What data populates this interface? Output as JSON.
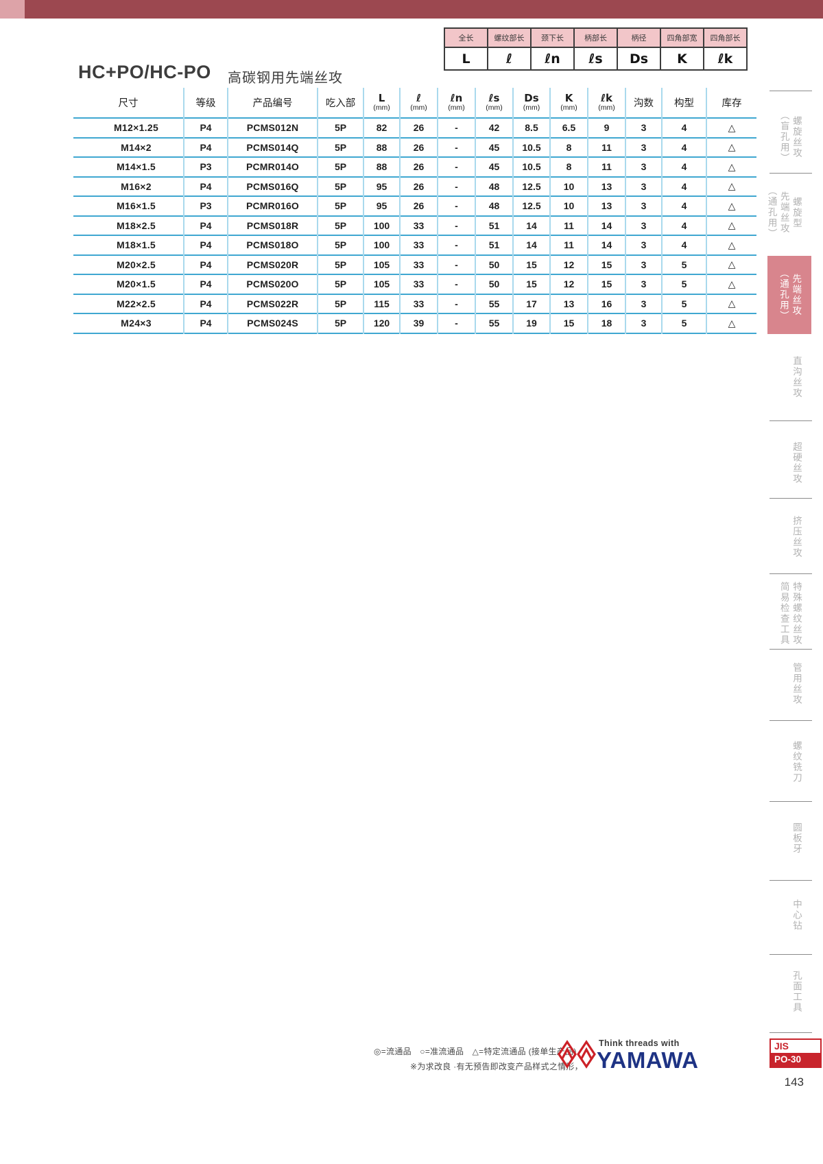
{
  "page": {
    "title_code": "HC+PO/HC-PO",
    "title_cn": "高碳钢用先端丝攻",
    "page_number": "143"
  },
  "colors": {
    "topbar": "#9c4850",
    "topbar_accent": "#dda3a8",
    "legend_header_bg": "#f2c6c9",
    "table_line_horizontal": "#3fa7d1",
    "table_line_vertical": "#a9d9ed",
    "active_tab_bg": "#d8858d",
    "brand_red": "#c8242c",
    "brand_blue": "#1e3384"
  },
  "legend": {
    "columns": [
      {
        "label": "全长",
        "symbol": "L"
      },
      {
        "label": "螺纹部长",
        "symbol": "ℓ"
      },
      {
        "label": "颈下长",
        "symbol": "ℓn"
      },
      {
        "label": "柄部长",
        "symbol": "ℓs"
      },
      {
        "label": "柄径",
        "symbol": "Ds"
      },
      {
        "label": "四角部宽",
        "symbol": "K"
      },
      {
        "label": "四角部长",
        "symbol": "ℓk"
      }
    ]
  },
  "table": {
    "columns": [
      {
        "label": "尺寸",
        "unit": ""
      },
      {
        "label": "等级",
        "unit": ""
      },
      {
        "label": "产品编号",
        "unit": ""
      },
      {
        "label": "吃入部",
        "unit": ""
      },
      {
        "label": "L",
        "unit": "(mm)"
      },
      {
        "label": "ℓ",
        "unit": "(mm)"
      },
      {
        "label": "ℓn",
        "unit": "(mm)"
      },
      {
        "label": "ℓs",
        "unit": "(mm)"
      },
      {
        "label": "Ds",
        "unit": "(mm)"
      },
      {
        "label": "K",
        "unit": "(mm)"
      },
      {
        "label": "ℓk",
        "unit": "(mm)"
      },
      {
        "label": "沟数",
        "unit": ""
      },
      {
        "label": "构型",
        "unit": ""
      },
      {
        "label": "库存",
        "unit": ""
      }
    ],
    "rows": [
      [
        "M12×1.25",
        "P4",
        "PCMS012N",
        "5P",
        "82",
        "26",
        "-",
        "42",
        "8.5",
        "6.5",
        "9",
        "3",
        "4",
        "△"
      ],
      [
        "M14×2",
        "P4",
        "PCMS014Q",
        "5P",
        "88",
        "26",
        "-",
        "45",
        "10.5",
        "8",
        "11",
        "3",
        "4",
        "△"
      ],
      [
        "M14×1.5",
        "P3",
        "PCMR014O",
        "5P",
        "88",
        "26",
        "-",
        "45",
        "10.5",
        "8",
        "11",
        "3",
        "4",
        "△"
      ],
      [
        "M16×2",
        "P4",
        "PCMS016Q",
        "5P",
        "95",
        "26",
        "-",
        "48",
        "12.5",
        "10",
        "13",
        "3",
        "4",
        "△"
      ],
      [
        "M16×1.5",
        "P3",
        "PCMR016O",
        "5P",
        "95",
        "26",
        "-",
        "48",
        "12.5",
        "10",
        "13",
        "3",
        "4",
        "△"
      ],
      [
        "M18×2.5",
        "P4",
        "PCMS018R",
        "5P",
        "100",
        "33",
        "-",
        "51",
        "14",
        "11",
        "14",
        "3",
        "4",
        "△"
      ],
      [
        "M18×1.5",
        "P4",
        "PCMS018O",
        "5P",
        "100",
        "33",
        "-",
        "51",
        "14",
        "11",
        "14",
        "3",
        "4",
        "△"
      ],
      [
        "M20×2.5",
        "P4",
        "PCMS020R",
        "5P",
        "105",
        "33",
        "-",
        "50",
        "15",
        "12",
        "15",
        "3",
        "5",
        "△"
      ],
      [
        "M20×1.5",
        "P4",
        "PCMS020O",
        "5P",
        "105",
        "33",
        "-",
        "50",
        "15",
        "12",
        "15",
        "3",
        "5",
        "△"
      ],
      [
        "M22×2.5",
        "P4",
        "PCMS022R",
        "5P",
        "115",
        "33",
        "-",
        "55",
        "17",
        "13",
        "16",
        "3",
        "5",
        "△"
      ],
      [
        "M24×3",
        "P4",
        "PCMS024S",
        "5P",
        "120",
        "39",
        "-",
        "55",
        "19",
        "15",
        "18",
        "3",
        "5",
        "△"
      ]
    ]
  },
  "sidebar": {
    "items": [
      {
        "id": "spiral-tap-blind",
        "lines": [
          "螺旋丝攻",
          "（盲孔用）"
        ],
        "active": false
      },
      {
        "id": "spiral-point-tap-through",
        "lines": [
          "螺旋型",
          "先端丝攻",
          "（通孔用）"
        ],
        "active": false
      },
      {
        "id": "point-tap-through",
        "lines": [
          "先端丝攻",
          "（通孔用）"
        ],
        "active": true
      },
      {
        "id": "straight-flute-tap",
        "lines": [
          "直沟丝攻"
        ],
        "active": false
      },
      {
        "id": "carbide-tap",
        "lines": [
          "超硬丝攻"
        ],
        "active": false
      },
      {
        "id": "forming-tap",
        "lines": [
          "挤压丝攻"
        ],
        "active": false
      },
      {
        "id": "special-thread-tap-gauge",
        "lines": [
          "特殊螺纹丝攻",
          "简易检查工具"
        ],
        "active": false
      },
      {
        "id": "pipe-tap",
        "lines": [
          "管用丝攻"
        ],
        "active": false
      },
      {
        "id": "thread-mill",
        "lines": [
          "螺纹铣刀"
        ],
        "active": false
      },
      {
        "id": "round-die",
        "lines": [
          "圆板牙"
        ],
        "active": false
      },
      {
        "id": "center-drill",
        "lines": [
          "中心钻"
        ],
        "active": false
      },
      {
        "id": "hole-surface-tools",
        "lines": [
          "孔面工具"
        ],
        "active": false
      }
    ]
  },
  "footer": {
    "legend_note": "◎=流通品　○=准流通品　△=特定流通品 (接单生产品)",
    "disclaimer": "※为求改良 ·有无预告即改变产品样式之情形，",
    "brand_tagline": "Think threads with",
    "brand_name": "YAMAWA",
    "jis_label": "JIS",
    "jis_code": "PO-30"
  }
}
